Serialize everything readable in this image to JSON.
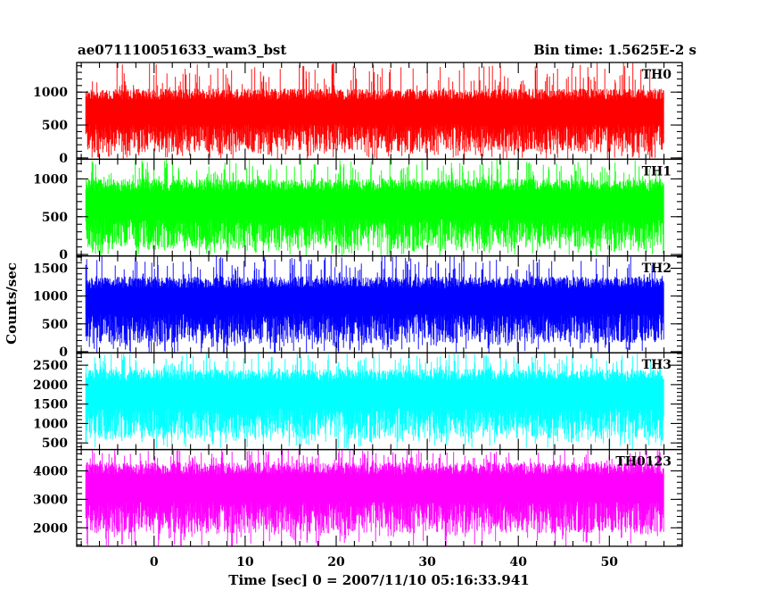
{
  "header": {
    "title": "ae071110051633_wam3_bst",
    "bin_time": "Bin time: 1.5625E-2 s"
  },
  "chart_data": {
    "type": "line",
    "xlabel": "Time [sec] 0 = 2007/11/10 05:16:33.941",
    "ylabel": "Counts/sec",
    "xlim": [
      -8.5,
      58
    ],
    "x_data_range": [
      -7.5,
      56
    ],
    "x_ticks": [
      0,
      10,
      20,
      30,
      40,
      50
    ],
    "x_major_step": 10,
    "x_minor_step": 2,
    "grid": false,
    "legend": "none",
    "series": [
      {
        "name": "TH0",
        "color": "#ff0000",
        "ylim": [
          -20,
          1450
        ],
        "y_ticks": [
          0,
          500,
          1000
        ],
        "y_minor_step": 100,
        "typical_range": [
          80,
          1050
        ],
        "spike_max": 1450,
        "mean": 560
      },
      {
        "name": "TH1",
        "color": "#00ff00",
        "ylim": [
          -20,
          1260
        ],
        "y_ticks": [
          0,
          500,
          1000
        ],
        "y_minor_step": 100,
        "typical_range": [
          70,
          1000
        ],
        "spike_max": 1260,
        "mean": 520
      },
      {
        "name": "TH2",
        "color": "#0000ff",
        "ylim": [
          -20,
          1720
        ],
        "y_ticks": [
          0,
          500,
          1000,
          1500
        ],
        "y_minor_step": 100,
        "typical_range": [
          150,
          1350
        ],
        "spike_max": 1720,
        "mean": 740
      },
      {
        "name": "TH3",
        "color": "#00ffff",
        "ylim": [
          330,
          2820
        ],
        "y_ticks": [
          500,
          1000,
          1500,
          2000,
          2500
        ],
        "y_minor_step": 100,
        "typical_range": [
          600,
          2400
        ],
        "spike_max": 2820,
        "mean": 1500
      },
      {
        "name": "TH0123",
        "color": "#ff00ff",
        "ylim": [
          1350,
          4750
        ],
        "y_ticks": [
          2000,
          3000,
          4000
        ],
        "y_minor_step": 200,
        "typical_range": [
          1800,
          4300
        ],
        "spike_max": 4750,
        "mean": 3050
      }
    ]
  }
}
